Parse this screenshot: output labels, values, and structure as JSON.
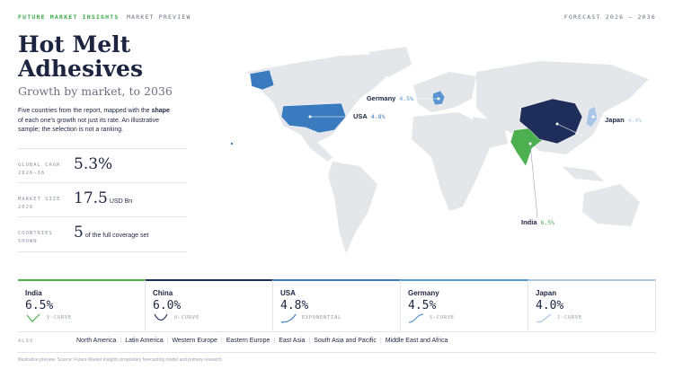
{
  "header": {
    "brand": "FUTURE MARKET INSIGHTS",
    "section": "MARKET PREVIEW",
    "range": "FORECAST 2026 – 2036"
  },
  "title": "Hot Melt Adhesives",
  "subtitle": "Growth by market, to 2036",
  "intro": {
    "before": "Five countries from the report, mapped with the ",
    "bold": "shape",
    "after": " of each one's growth not just its rate. An illustrative sample; the selection is not a ranking."
  },
  "stats": [
    {
      "label": [
        "GLOBAL CAGR",
        "2026–36"
      ],
      "value": "5.3%"
    },
    {
      "label": [
        "MARKET SIZE",
        "2026"
      ],
      "value": "17.5",
      "unit": "USD Bn"
    },
    {
      "label": [
        "COUNTRIES",
        "SHOWN"
      ],
      "value": "5",
      "unit": "of the full coverage set"
    }
  ],
  "countries": [
    {
      "name": "India",
      "rate": "6.5%",
      "curve": "V-CURVE",
      "color": "#4caf50"
    },
    {
      "name": "China",
      "rate": "6.0%",
      "curve": "U-CURVE",
      "color": "#1e2d5a"
    },
    {
      "name": "USA",
      "rate": "4.8%",
      "curve": "EXPONENTIAL",
      "color": "#3a7bbf"
    },
    {
      "name": "Germany",
      "rate": "4.5%",
      "curve": "S-CURVE",
      "color": "#5b95d0"
    },
    {
      "name": "Japan",
      "rate": "4.0%",
      "curve": "J-CURVE",
      "color": "#a9c6e6"
    }
  ],
  "also": {
    "label": "ALSO",
    "regions": [
      "North America",
      "Latin America",
      "Western Europe",
      "Eastern Europe",
      "East Asia",
      "South Asia and Pacific",
      "Middle East and Africa"
    ]
  },
  "footer": "Illustrative preview. Source: Future Market Insights proprietary forecasting model and primary research."
}
